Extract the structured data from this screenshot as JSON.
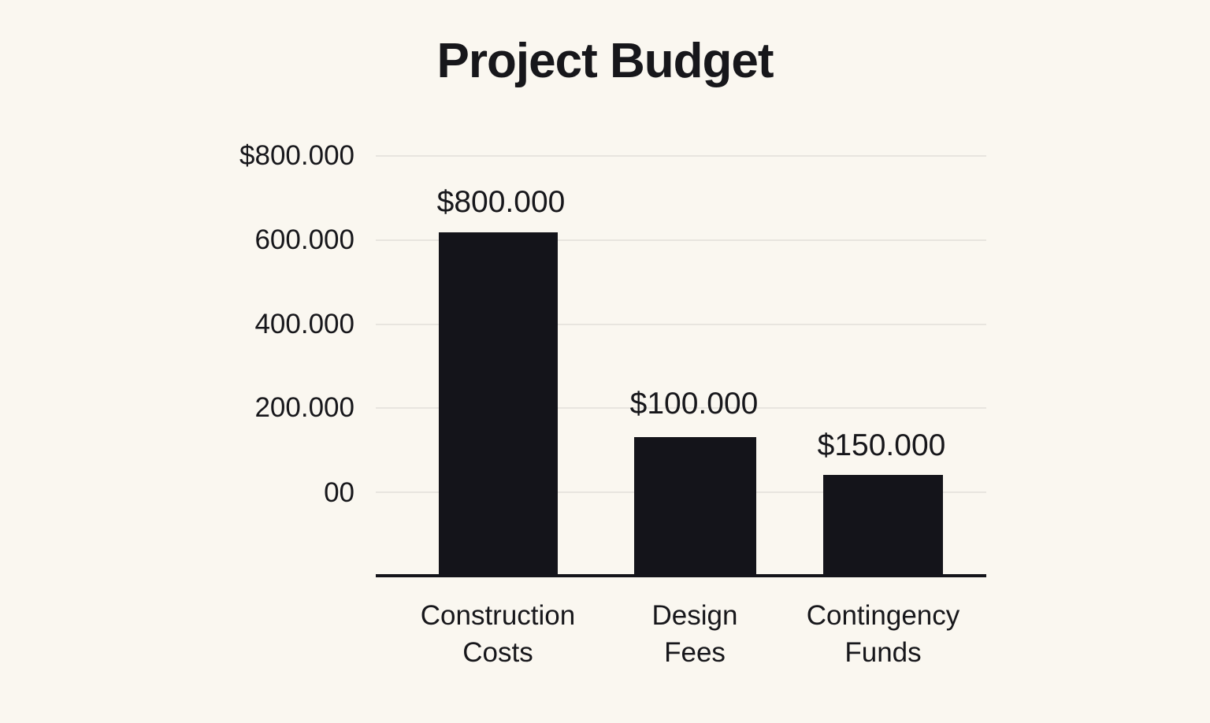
{
  "chart": {
    "background_color": "#FAF7F0",
    "bar_color": "#14141A",
    "text_color": "#17171B",
    "gridline_color": "#E8E5DF",
    "axis_line_color": "#14141A"
  },
  "chart_data": {
    "type": "bar",
    "title": "Project Budget",
    "categories": [
      "Construction Costs",
      "Design Fees",
      "Contingency Funds"
    ],
    "category_lines": [
      [
        "Construction",
        "Costs"
      ],
      [
        "Design",
        "Fees"
      ],
      [
        "Contingency",
        "Funds"
      ]
    ],
    "values": [
      800000,
      100000,
      150000
    ],
    "bar_value_labels": [
      "$800.000",
      "$100.000",
      "$150.000"
    ],
    "y_tick_labels": [
      "$800.000",
      "600.000",
      "400.000",
      "200.000",
      "00"
    ],
    "xlabel": "",
    "ylabel": "",
    "ylim_labeled": [
      0,
      800000
    ],
    "grid": true,
    "legend": false,
    "legend_position": "none"
  }
}
